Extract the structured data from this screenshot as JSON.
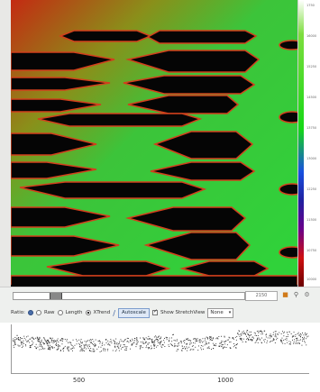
{
  "colorbar": {
    "labels": [
      "1750",
      "16000",
      "15250",
      "14500",
      "13750",
      "13000",
      "12250",
      "11500",
      "10750",
      "10000"
    ]
  },
  "scroll": {
    "position_value": "2150"
  },
  "toolbar": {
    "ratio_label": "Ratio:",
    "raw_label": "Raw",
    "length_label": "Length",
    "xtrend_label": "XTrend",
    "autoscale_label": "Autoscale",
    "show_stretch_label": "Show StretchView",
    "none_option": "None"
  },
  "plot": {
    "x_ticks": [
      "500",
      "1000"
    ],
    "x_tick_values": [
      500,
      1000
    ],
    "x_range": [
      260,
      1290
    ]
  }
}
